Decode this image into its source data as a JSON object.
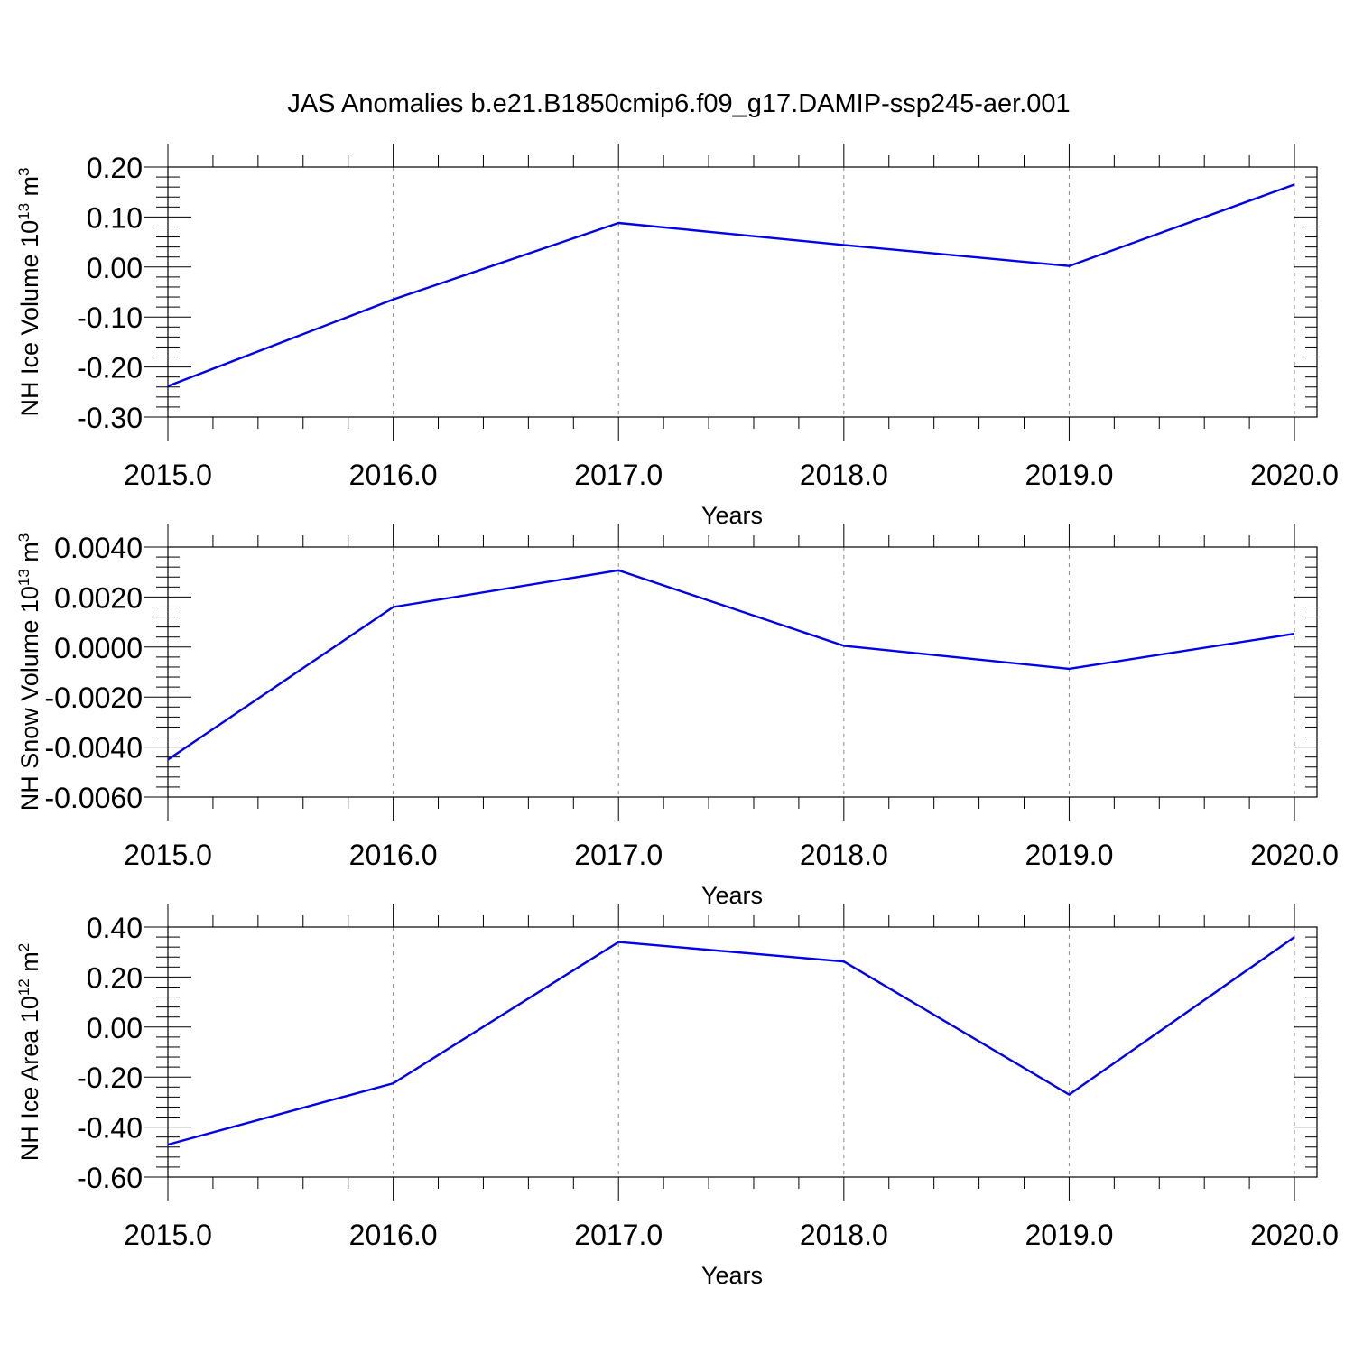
{
  "title": "JAS Anomalies b.e21.B1850cmip6.f09_g17.DAMIP-ssp245-aer.001",
  "colors": {
    "line": "#0000ee",
    "axis": "#000000",
    "grid": "#888888"
  },
  "chart_data": [
    {
      "type": "line",
      "ylabel": {
        "main": "NH Ice Volume 10",
        "sup": "13",
        "unit": " m",
        "unit_sup": "3"
      },
      "xlabel": "Years",
      "xlim": [
        2015,
        2020.1
      ],
      "ylim": [
        -0.3,
        0.2
      ],
      "x_ticks": [
        2015,
        2016,
        2017,
        2018,
        2019,
        2020
      ],
      "x_tick_labels": [
        "2015.0",
        "2016.0",
        "2017.0",
        "2018.0",
        "2019.0",
        "2020.0"
      ],
      "y_ticks": [
        0.2,
        0.1,
        0.0,
        -0.1,
        -0.2,
        -0.3
      ],
      "y_tick_labels": [
        "0.20",
        "0.10",
        "0.00",
        "-0.10",
        "-0.20",
        "-0.30"
      ],
      "grid": "vertical-dashed",
      "x": [
        2015,
        2016,
        2017,
        2018,
        2019,
        2020
      ],
      "series": [
        {
          "values": [
            -0.238,
            -0.065,
            0.088,
            0.044,
            0.002,
            0.165
          ]
        }
      ]
    },
    {
      "type": "line",
      "ylabel": {
        "main": "NH Snow Volume 10",
        "sup": "13",
        "unit": " m",
        "unit_sup": "3"
      },
      "xlabel": "Years",
      "xlim": [
        2015,
        2020.1
      ],
      "ylim": [
        -0.006,
        0.004
      ],
      "x_ticks": [
        2015,
        2016,
        2017,
        2018,
        2019,
        2020
      ],
      "x_tick_labels": [
        "2015.0",
        "2016.0",
        "2017.0",
        "2018.0",
        "2019.0",
        "2020.0"
      ],
      "y_ticks": [
        0.004,
        0.002,
        0.0,
        -0.002,
        -0.004,
        -0.006
      ],
      "y_tick_labels": [
        "0.0040",
        "0.0020",
        "0.0000",
        "-0.0020",
        "-0.0040",
        "-0.0060"
      ],
      "grid": "vertical-dashed",
      "x": [
        2015,
        2016,
        2017,
        2018,
        2019,
        2020
      ],
      "series": [
        {
          "values": [
            -0.0045,
            0.0016,
            0.00307,
            5e-05,
            -0.00087,
            0.00053
          ]
        }
      ]
    },
    {
      "type": "line",
      "ylabel": {
        "main": "NH Ice Area 10",
        "sup": "12",
        "unit": " m",
        "unit_sup": "2"
      },
      "xlabel": "Years",
      "xlim": [
        2015,
        2020.1
      ],
      "ylim": [
        -0.6,
        0.4
      ],
      "x_ticks": [
        2015,
        2016,
        2017,
        2018,
        2019,
        2020
      ],
      "x_tick_labels": [
        "2015.0",
        "2016.0",
        "2017.0",
        "2018.0",
        "2019.0",
        "2020.0"
      ],
      "y_ticks": [
        0.4,
        0.2,
        0.0,
        -0.2,
        -0.4,
        -0.6
      ],
      "y_tick_labels": [
        "0.40",
        "0.20",
        "0.00",
        "-0.20",
        "-0.40",
        "-0.60"
      ],
      "grid": "vertical-dashed",
      "x": [
        2015,
        2016,
        2017,
        2018,
        2019,
        2020
      ],
      "series": [
        {
          "values": [
            -0.47,
            -0.225,
            0.34,
            0.262,
            -0.27,
            0.36
          ]
        }
      ]
    }
  ]
}
